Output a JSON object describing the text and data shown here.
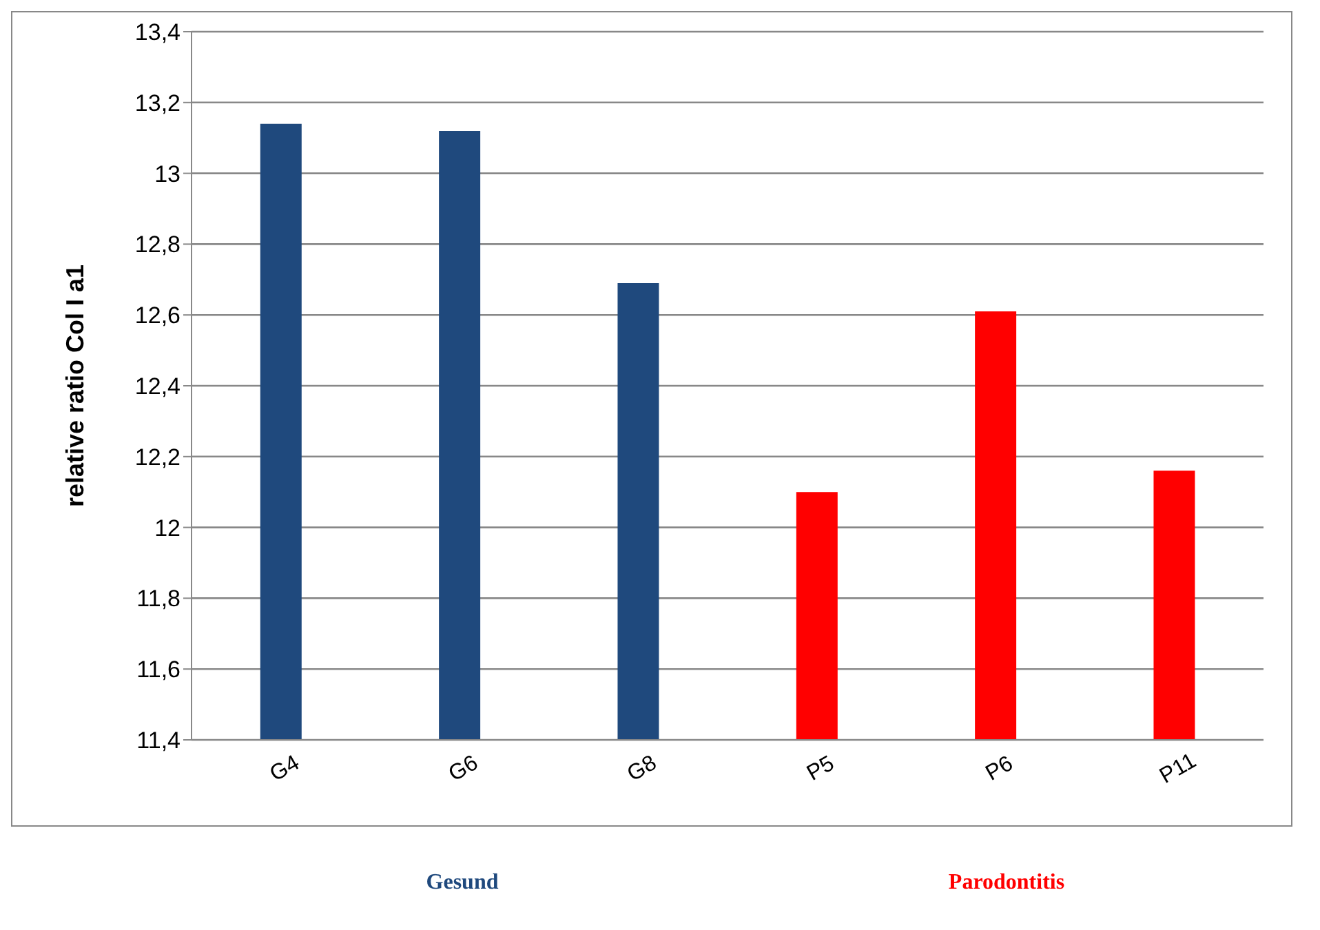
{
  "chart_data": {
    "type": "bar",
    "ylabel": "relative ratio Col I a1",
    "categories": [
      "G4",
      "G6",
      "G8",
      "P5",
      "P6",
      "P11"
    ],
    "series": [
      {
        "name": "Gesund",
        "color": "#1f497d",
        "values": [
          13.14,
          13.12,
          12.69,
          null,
          null,
          null
        ]
      },
      {
        "name": "Parodontitis",
        "color": "#ff0000",
        "values": [
          null,
          null,
          null,
          12.1,
          12.61,
          12.16
        ]
      }
    ],
    "ylim": [
      11.4,
      13.4
    ],
    "yticks": [
      {
        "value": 11.4,
        "label": "11,4"
      },
      {
        "value": 11.6,
        "label": "11,6"
      },
      {
        "value": 11.8,
        "label": "11,8"
      },
      12,
      {
        "value": 12.2,
        "label": "12,2"
      },
      {
        "value": 12.4,
        "label": "12,4"
      },
      {
        "value": 12.6,
        "label": "12,6"
      },
      {
        "value": 12.8,
        "label": "12,8"
      },
      13,
      {
        "value": 13.2,
        "label": "13,2"
      },
      {
        "value": 13.4,
        "label": "13,4"
      }
    ],
    "grid": "y",
    "legend": "bottom"
  }
}
